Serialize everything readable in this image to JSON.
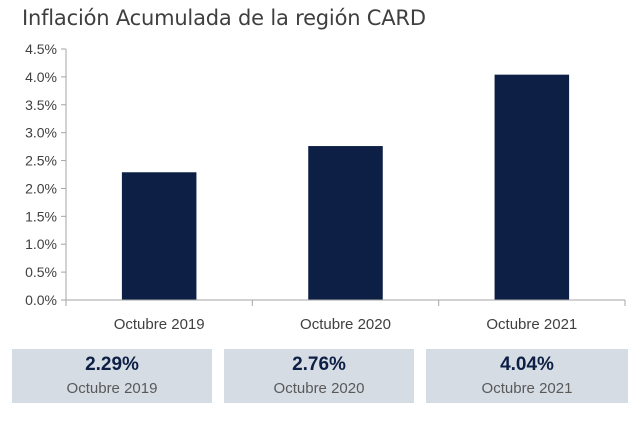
{
  "title": "Inflación Acumulada de la región CARD",
  "chart_data": {
    "type": "bar",
    "title": "Inflación Acumulada de la región CARD",
    "categories": [
      "Octubre 2019",
      "Octubre 2020",
      "Octubre 2021"
    ],
    "values": [
      2.29,
      2.76,
      4.04
    ],
    "ylim": [
      0,
      4.5
    ],
    "yticks": [
      "0.0%",
      "0.5%",
      "1.0%",
      "1.5%",
      "2.0%",
      "2.5%",
      "3.0%",
      "3.5%",
      "4.0%",
      "4.5%"
    ],
    "ytick_values": [
      0,
      0.5,
      1.0,
      1.5,
      2.0,
      2.5,
      3.0,
      3.5,
      4.0,
      4.5
    ],
    "xlabel": "",
    "ylabel": "",
    "grid": false,
    "bar_color": "#0d1f45"
  },
  "summary_boxes": [
    {
      "value": "2.29%",
      "label": "Octubre 2019"
    },
    {
      "value": "2.76%",
      "label": "Octubre 2020"
    },
    {
      "value": "4.04%",
      "label": "Octubre 2021"
    }
  ],
  "colors": {
    "bar": "#0d1f45",
    "box_background": "#d6dce4",
    "box_value_text": "#0d1f45",
    "axis": "#a6a6a6"
  }
}
